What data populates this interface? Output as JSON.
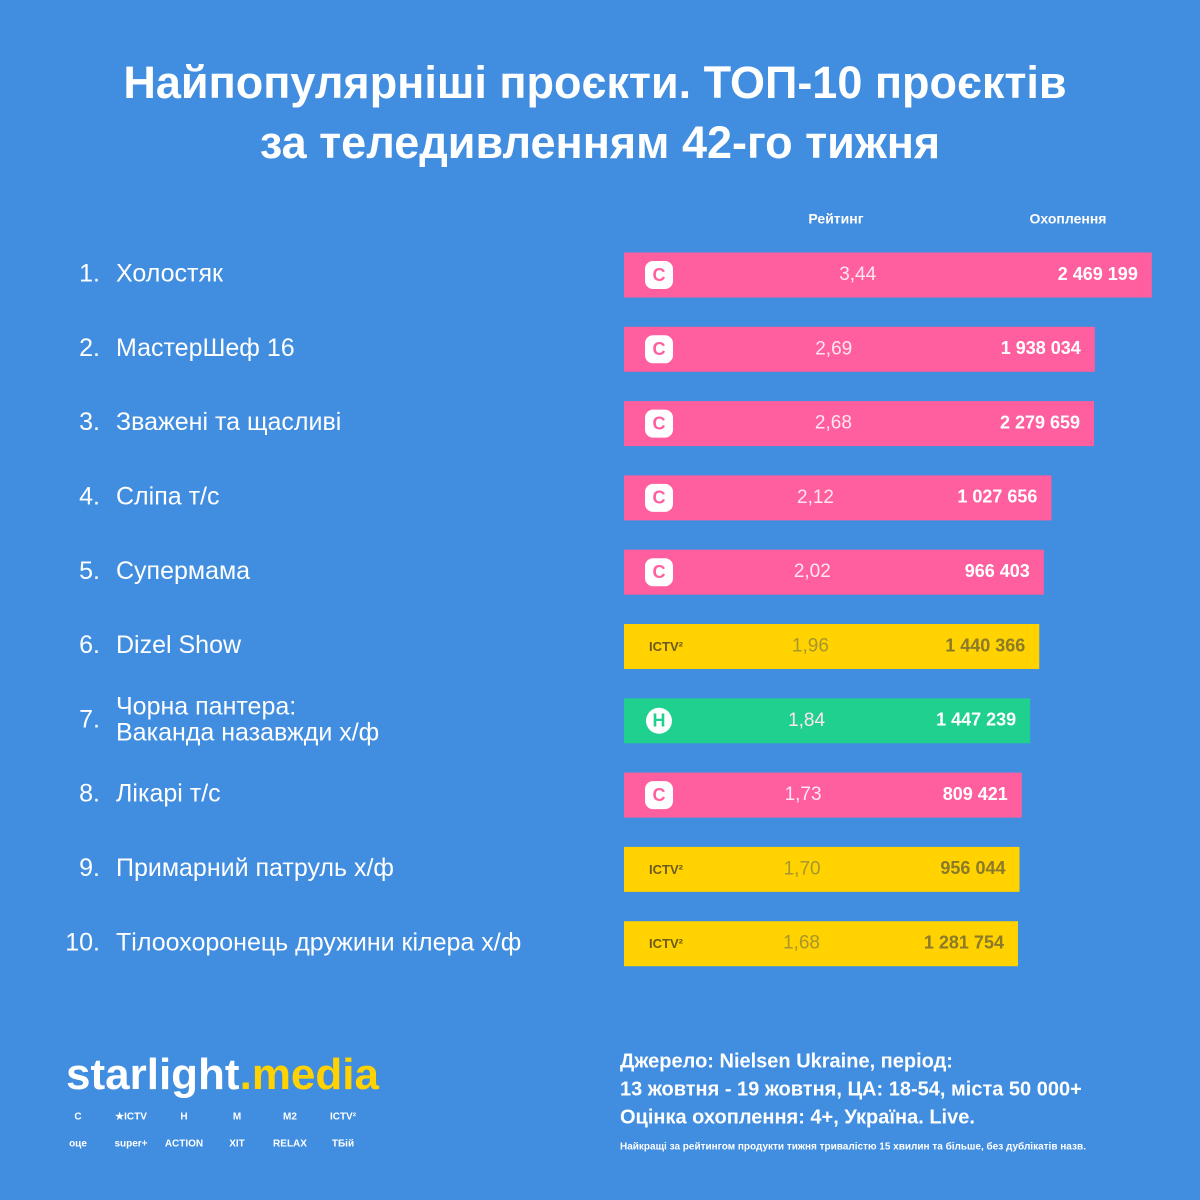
{
  "chart_data": {
    "type": "bar",
    "title": [
      "Найпопулярніші проєкти. ТОП-10 проєктів",
      "за теледивленням 42-го тижня"
    ],
    "column_headers": [
      "Рейтинг",
      "Охоплення"
    ],
    "ranks": [
      "1.",
      "2.",
      "3.",
      "4.",
      "5.",
      "6.",
      "7.",
      "8.",
      "9.",
      "10."
    ],
    "categories": [
      [
        "Холостяк"
      ],
      [
        "МастерШеф 16"
      ],
      [
        "Зважені та щасливі"
      ],
      [
        "Сліпа т/с"
      ],
      [
        "Супермама"
      ],
      [
        "Dizel Show"
      ],
      [
        "Чорна пантера:",
        "Ваканда назавжди х/ф"
      ],
      [
        "Лікарі т/с"
      ],
      [
        "Примарний патруль х/ф"
      ],
      [
        "Тілоохоронець дружини кілера х/ф"
      ]
    ],
    "values": [
      3.44,
      2.69,
      2.68,
      2.12,
      2.02,
      1.96,
      1.84,
      1.73,
      1.7,
      1.68
    ],
    "value_labels": [
      "3,44",
      "2,69",
      "2,68",
      "2,12",
      "2,02",
      "1,96",
      "1,84",
      "1,73",
      "1,70",
      "1,68"
    ],
    "reach": [
      2469199,
      1938034,
      2279659,
      1027656,
      966403,
      1440366,
      1447239,
      809421,
      956044,
      1281754
    ],
    "reach_labels": [
      "2 469 199",
      "1 938 034",
      "2 279 659",
      "1 027 656",
      "966 403",
      "1 440 366",
      "1 447 239",
      "809 421",
      "956 044",
      "1 281 754"
    ],
    "logos": [
      "С",
      "С",
      "С",
      "С",
      "С",
      "ICTV²",
      "Н",
      "С",
      "ICTV²",
      "ICTV²"
    ],
    "colors": [
      "#ff5f9e",
      "#ff5f9e",
      "#ff5f9e",
      "#ff5f9e",
      "#ff5f9e",
      "#ffd200",
      "#1fd08f",
      "#ff5f9e",
      "#ffd200",
      "#ffd200"
    ],
    "xlim": [
      -3.5,
      3.6
    ],
    "brand": [
      "starlight",
      ".",
      "media"
    ],
    "channel_logos": [
      [
        "С",
        "★ICTV",
        "Н",
        "М",
        "М2",
        "ICTV²"
      ],
      [
        "оце",
        "super+",
        "ACTION",
        "XIT",
        "RELAX",
        "ТБій"
      ]
    ],
    "source": [
      "Джерело: Nielsen Ukraine, період:",
      "13 жовтня - 19 жовтня, ЦА: 18-54, міста 50 000+",
      "Оцінка охоплення: 4+, Україна. Live."
    ],
    "footnote": "Найкращі за рейтингом продукти тижня тривалістю 15 хвилин та більше, без дублікатів назв."
  }
}
